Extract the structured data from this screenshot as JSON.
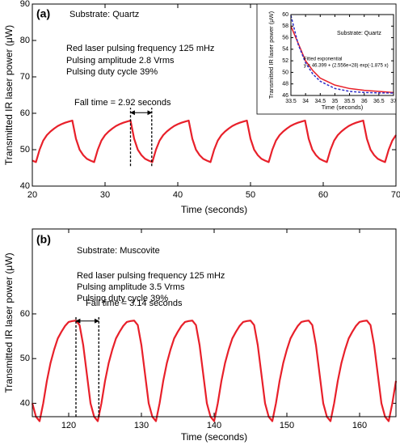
{
  "chart_data": [
    {
      "type": "line",
      "xlabel": "Time (seconds)",
      "ylabel": "Transmitted IR laser power (μW)",
      "annotations": [
        "(a)",
        "Substrate: Quartz",
        "Red laser pulsing frequency 125 mHz",
        "Pulsing amplitude 2.8 Vrms",
        "Pulsing duty cycle 39%"
      ],
      "fall_time": {
        "label": "Fall time = 2.92 seconds",
        "x": [
          33.5,
          36.42
        ],
        "y": [
          45.5,
          61.5
        ]
      },
      "xlim": [
        20,
        70
      ],
      "xticks": [
        20,
        30,
        40,
        50,
        60,
        70
      ],
      "ylim": [
        40,
        90
      ],
      "yticks": [
        40,
        50,
        60,
        70,
        80,
        90
      ],
      "x": [
        20,
        20.5,
        21,
        21.5,
        22,
        22.5,
        23,
        23.5,
        24,
        24.5,
        25,
        25.5,
        26,
        26.5,
        27,
        27.5,
        28,
        28.5,
        29,
        29.5,
        30,
        30.5,
        31,
        31.5,
        32,
        32.5,
        33,
        33.5,
        34,
        34.5,
        35,
        35.5,
        36,
        36.5,
        37,
        37.5,
        38,
        38.5,
        39,
        39.5,
        40,
        40.5,
        41,
        41.5,
        42,
        42.5,
        43,
        43.5,
        44,
        44.5,
        45,
        45.5,
        46,
        46.5,
        47,
        47.5,
        48,
        48.5,
        49,
        49.5,
        50,
        50.5,
        51,
        51.5,
        52,
        52.5,
        53,
        53.5,
        54,
        54.5,
        55,
        55.5,
        56,
        56.5,
        57,
        57.5,
        58,
        58.5,
        59,
        59.5,
        60,
        60.5,
        61,
        61.5,
        62,
        62.5,
        63,
        63.5,
        64,
        64.5,
        65,
        65.5,
        66,
        66.5,
        67,
        67.5,
        68,
        68.5,
        69,
        69.5,
        70
      ],
      "series": [
        {
          "color": "#e8202a",
          "values": [
            47,
            46.6,
            50,
            52.5,
            54,
            55,
            55.8,
            56.5,
            57,
            57.4,
            57.7,
            58,
            53,
            50,
            48.5,
            47.5,
            47,
            46.6,
            50,
            52.5,
            54,
            55,
            55.8,
            56.5,
            57,
            57.4,
            57.7,
            58,
            53,
            50,
            48.5,
            47.5,
            47,
            46.6,
            50,
            52.5,
            54,
            55,
            55.8,
            56.5,
            57,
            57.4,
            57.7,
            58,
            53,
            50,
            48.5,
            47.5,
            47,
            46.6,
            50,
            52.5,
            54,
            55,
            55.8,
            56.5,
            57,
            57.4,
            57.7,
            58,
            53,
            50,
            48.5,
            47.5,
            47,
            46.6,
            50,
            52.5,
            54,
            55,
            55.8,
            56.5,
            57,
            57.4,
            57.7,
            58,
            53,
            50,
            48.5,
            47.5,
            47,
            46.6,
            50,
            52.5,
            54,
            55,
            55.8,
            56.5,
            57,
            57.4,
            57.7,
            58,
            53,
            50,
            48.5,
            47.5,
            47,
            46.6,
            50,
            52.5,
            54
          ]
        }
      ]
    },
    {
      "type": "line",
      "xlabel": "Time (seconds)",
      "ylabel": "Transmitted IR laser power (μW)",
      "annotations": [
        "(b)",
        "Substrate: Muscovite",
        "Red laser pulsing frequency 125 mHz",
        "Pulsing amplitude 3.5 Vrms",
        "Pulsing duty cycle 39%"
      ],
      "fall_time": {
        "label": "Fall time = 3.14 seconds",
        "x": [
          121,
          124.14
        ],
        "y": [
          37,
          59.5
        ]
      },
      "xlim": [
        115,
        165
      ],
      "xticks": [
        120,
        130,
        140,
        150,
        160
      ],
      "ylim": [
        37,
        79
      ],
      "yticks": [
        40,
        50,
        60
      ],
      "x": [
        115,
        115.5,
        116,
        116.5,
        117,
        117.5,
        118,
        118.5,
        119,
        119.5,
        120,
        120.5,
        121,
        121.5,
        122,
        122.5,
        123,
        123.5,
        124,
        124.5,
        125,
        125.5,
        126,
        126.5,
        127,
        127.5,
        128,
        128.5,
        129,
        129.5,
        130,
        130.5,
        131,
        131.5,
        132,
        132.5,
        133,
        133.5,
        134,
        134.5,
        135,
        135.5,
        136,
        136.5,
        137,
        137.5,
        138,
        138.5,
        139,
        139.5,
        140,
        140.5,
        141,
        141.5,
        142,
        142.5,
        143,
        143.5,
        144,
        144.5,
        145,
        145.5,
        146,
        146.5,
        147,
        147.5,
        148,
        148.5,
        149,
        149.5,
        150,
        150.5,
        151,
        151.5,
        152,
        152.5,
        153,
        153.5,
        154,
        154.5,
        155,
        155.5,
        156,
        156.5,
        157,
        157.5,
        158,
        158.5,
        159,
        159.5,
        160,
        160.5,
        161,
        161.5,
        162,
        162.5,
        163,
        163.5,
        164,
        164.5,
        165
      ],
      "series": [
        {
          "color": "#e8202a",
          "values": [
            40,
            37,
            36,
            40,
            45,
            49,
            52,
            54.5,
            56,
            57.3,
            58.2,
            58.4,
            58.5,
            57.5,
            53,
            46.5,
            40,
            37,
            36,
            40,
            45,
            49,
            52,
            54.5,
            56,
            57.3,
            58.2,
            58.4,
            58.5,
            57.5,
            53,
            46.5,
            40,
            37,
            36,
            40,
            45,
            49,
            52,
            54.5,
            56,
            57.3,
            58.2,
            58.4,
            58.5,
            57.5,
            53,
            46.5,
            40,
            37,
            36,
            40,
            45,
            49,
            52,
            54.5,
            56,
            57.3,
            58.2,
            58.4,
            58.5,
            57.5,
            53,
            46.5,
            40,
            37,
            36,
            40,
            45,
            49,
            52,
            54.5,
            56,
            57.3,
            58.2,
            58.4,
            58.5,
            57.5,
            53,
            46.5,
            40,
            37,
            36,
            40,
            45,
            49,
            52,
            54.5,
            56,
            57.3,
            58.2,
            58.4,
            58.5,
            57.5,
            53,
            46.5,
            40,
            37,
            36,
            40,
            45
          ]
        }
      ]
    },
    {
      "type": "line",
      "xlabel": "Time (seconds)",
      "ylabel": "Transmitted IR laser power (μW)",
      "annotations": [
        "Substrate: Quartz",
        "y = 46.399 + (2.556e+28) exp(-1.875 x)"
      ],
      "xlim": [
        33.5,
        37
      ],
      "xticks": [
        33.5,
        34,
        34.5,
        35,
        35.5,
        36,
        36.5,
        37
      ],
      "ylim": [
        46,
        60
      ],
      "yticks": [
        46,
        48,
        50,
        52,
        54,
        56,
        58,
        60
      ],
      "x": [
        33.5,
        33.75,
        34,
        34.25,
        34.5,
        35,
        35.5,
        36,
        36.5,
        37
      ],
      "series": [
        {
          "color": "#e8202a",
          "values": [
            58,
            55,
            52,
            50.3,
            49,
            47.8,
            47.2,
            46.9,
            46.7,
            46.5
          ]
        },
        {
          "name": "Fitted exponential",
          "color": "#2d2dc8",
          "style": "dashed",
          "values": [
            59.84,
            54.81,
            51.66,
            49.69,
            48.46,
            47.21,
            46.71,
            46.52,
            46.45,
            46.42
          ]
        }
      ]
    }
  ]
}
